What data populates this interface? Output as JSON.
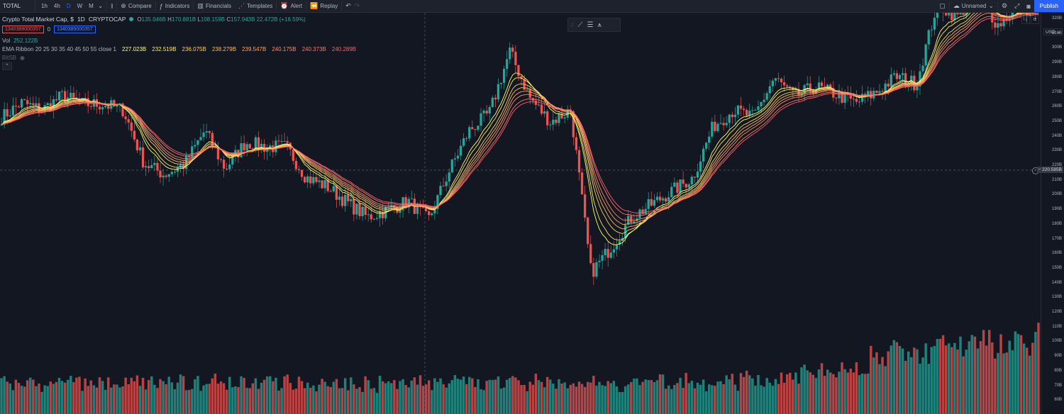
{
  "toolbar": {
    "symbol": "TOTAL",
    "intervals": [
      "1h",
      "4h",
      "D",
      "W",
      "M"
    ],
    "active_interval": "D",
    "compare": "Compare",
    "indicators": "Indicators",
    "financials": "Financials",
    "templates": "Templates",
    "alert": "Alert",
    "replay": "Replay",
    "layout_name": "Unnamed",
    "publish": "Publish"
  },
  "legend": {
    "title": "Crypto Total Market Cap, $",
    "interval": "1D",
    "exchange": "CRYPTOCAP",
    "o_label": "O",
    "o": "135.046B",
    "h_label": "H",
    "h": "170.881B",
    "l_label": "L",
    "l": "108.159B",
    "c_label": "C",
    "c": "157.943B",
    "change": "22.472B (+16.59%)",
    "sell_price": "1340389000357",
    "spread": "0",
    "buy_price": "1340389000357",
    "vol_label": "Vol",
    "vol": "252.122B",
    "ema_label": "EMA Ribbon 20 25 30 35 40 45 50 55 close 1",
    "ema_values": [
      "227.023B",
      "232.519B",
      "236.075B",
      "238.279B",
      "239.547B",
      "240.175B",
      "240.373B",
      "240.289B"
    ],
    "hidden_label": "BitSB"
  },
  "price_axis": {
    "currency": "USD",
    "ticks": [
      "320B",
      "310B",
      "300B",
      "290B",
      "280B",
      "270B",
      "260B",
      "250B",
      "240B",
      "230B",
      "220B",
      "210B",
      "200B",
      "190B",
      "180B",
      "170B",
      "160B",
      "150B",
      "140B",
      "130B",
      "120B",
      "110B",
      "100B",
      "90B",
      "80B",
      "70B",
      "60B"
    ],
    "current_price": "220.585B"
  },
  "colors": {
    "up": "#26a69a",
    "down": "#ef5350",
    "ribbon": [
      "#ffff66",
      "#ffe866",
      "#ffd166",
      "#ffba66",
      "#ffa366",
      "#ff8c66",
      "#ff7566",
      "#ff5e66"
    ],
    "accent": "#2962ff"
  },
  "chart_data": {
    "type": "candlestick",
    "title": "Crypto Total Market Cap, $",
    "ylim": [
      55,
      322
    ],
    "price_anchors": [
      253,
      263,
      258,
      268,
      262,
      262,
      258,
      222,
      214,
      221,
      244,
      218,
      236,
      233,
      233,
      212,
      206,
      195,
      185,
      190,
      196,
      183,
      216,
      244,
      256,
      298,
      266,
      250,
      258,
      147,
      165,
      185,
      194,
      203,
      212,
      247,
      258,
      253,
      280,
      267,
      274,
      269,
      263,
      270,
      281,
      276,
      330,
      322,
      337,
      316,
      328,
      324
    ],
    "volume_range": [
      55,
      125
    ]
  }
}
